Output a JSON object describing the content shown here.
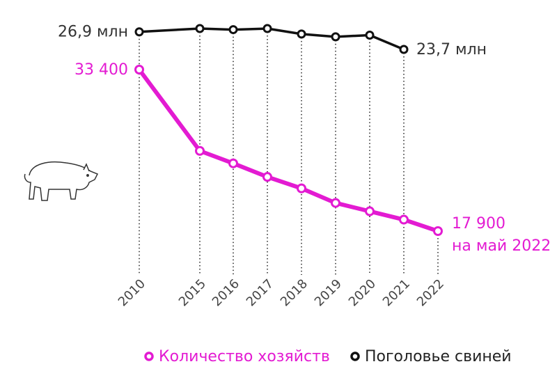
{
  "chart_data": {
    "type": "line",
    "categories": [
      "2010",
      "2015",
      "2016",
      "2017",
      "2018",
      "2019",
      "2020",
      "2021",
      "2022"
    ],
    "series": [
      {
        "name": "Количество хозяйств",
        "color": "#e31bd2",
        "values": [
          33400,
          25600,
          24400,
          23100,
          22000,
          20600,
          19800,
          19000,
          17900
        ],
        "value_labels": [
          "33 400",
          null,
          null,
          null,
          null,
          null,
          null,
          null,
          "17 900"
        ]
      },
      {
        "name": "Поголовье свиней",
        "color": "#111111",
        "values": [
          26.9,
          27.5,
          27.3,
          27.5,
          26.5,
          26.0,
          26.3,
          23.7,
          null
        ],
        "value_labels": [
          "26,9 млн",
          null,
          null,
          null,
          null,
          null,
          null,
          "23,7 млн",
          null
        ]
      }
    ],
    "annotation": "на май 2022",
    "legend": "bottom"
  }
}
